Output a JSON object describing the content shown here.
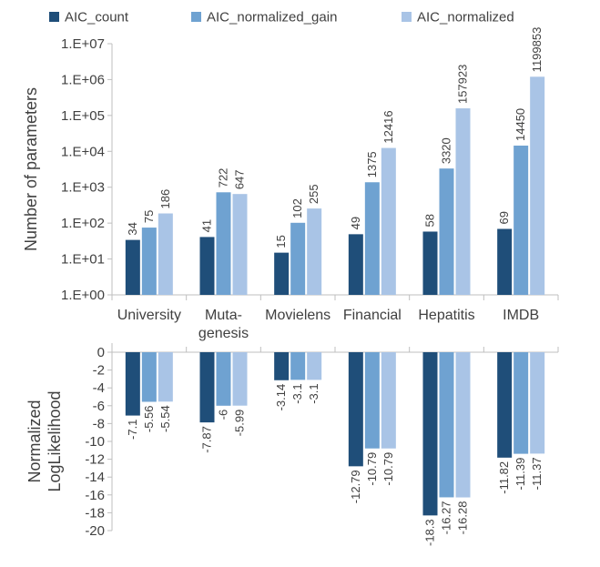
{
  "colors": {
    "AIC_count": "#1f4e79",
    "AIC_normalized_gain": "#6fa2d1",
    "AIC_normalized": "#a9c4e6",
    "axis": "#bfbfbf",
    "text": "#404040"
  },
  "chart_data": [
    {
      "type": "bar",
      "scale": "log",
      "ylabel": "Number of parameters",
      "categories": [
        "University",
        "Muta-\ngenesis",
        "Movielens",
        "Financial",
        "Hepatitis",
        "IMDB"
      ],
      "yticks": [
        "1.E+00",
        "1.E+01",
        "1.E+02",
        "1.E+03",
        "1.E+04",
        "1.E+05",
        "1.E+06",
        "1.E+07"
      ],
      "ylim": [
        1,
        10000000
      ],
      "legend_position": "top",
      "grid": false,
      "series": [
        {
          "name": "AIC_count",
          "values": [
            34,
            41,
            15,
            49,
            58,
            69
          ]
        },
        {
          "name": "AIC_normalized_gain",
          "values": [
            75,
            722,
            102,
            1375,
            3320,
            14450
          ]
        },
        {
          "name": "AIC_normalized",
          "values": [
            186,
            647,
            255,
            12416,
            157923,
            1199853
          ]
        }
      ]
    },
    {
      "type": "bar",
      "scale": "linear",
      "ylabel": "Normalized\nLogLikelihood",
      "categories": [
        "University",
        "Muta-\ngenesis",
        "Movielens",
        "Financial",
        "Hepatitis",
        "IMDB"
      ],
      "yticks": [
        "0",
        "-2",
        "-4",
        "-6",
        "-8",
        "-10",
        "-12",
        "-14",
        "-16",
        "-18",
        "-20"
      ],
      "ylim": [
        -20,
        0
      ],
      "grid": false,
      "series": [
        {
          "name": "AIC_count",
          "values": [
            -7.1,
            -7.87,
            -3.14,
            -12.79,
            -18.3,
            -11.82
          ]
        },
        {
          "name": "AIC_normalized_gain",
          "values": [
            -5.56,
            -6,
            -3.1,
            -10.79,
            -16.27,
            -11.39
          ]
        },
        {
          "name": "AIC_normalized",
          "values": [
            -5.54,
            -5.99,
            -3.1,
            -10.79,
            -16.28,
            -11.37
          ]
        }
      ]
    }
  ]
}
